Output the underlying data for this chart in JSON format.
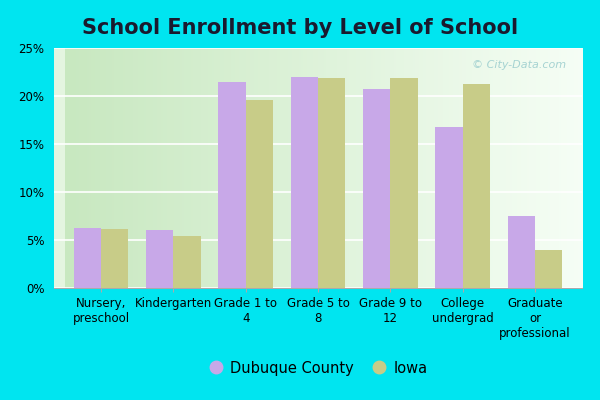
{
  "title": "School Enrollment by Level of School",
  "categories": [
    "Nursery,\npreschool",
    "Kindergarten",
    "Grade 1 to\n4",
    "Grade 5 to\n8",
    "Grade 9 to\n12",
    "College\nundergrad",
    "Graduate\nor\nprofessional"
  ],
  "dubuque_values": [
    6.2,
    6.0,
    21.5,
    22.0,
    20.7,
    16.8,
    7.5
  ],
  "iowa_values": [
    6.1,
    5.4,
    19.6,
    21.9,
    21.9,
    21.2,
    4.0
  ],
  "dubuque_color": "#c8a8e8",
  "iowa_color": "#c8cc88",
  "background_outer": "#00e5f0",
  "background_inner_top": "#f0fff8",
  "background_inner_bottom": "#d0ecc8",
  "ylim": [
    0,
    25
  ],
  "yticks": [
    0,
    5,
    10,
    15,
    20,
    25
  ],
  "legend_labels": [
    "Dubuque County",
    "Iowa"
  ],
  "bar_width": 0.38,
  "title_fontsize": 15,
  "tick_fontsize": 8.5,
  "legend_fontsize": 10.5
}
